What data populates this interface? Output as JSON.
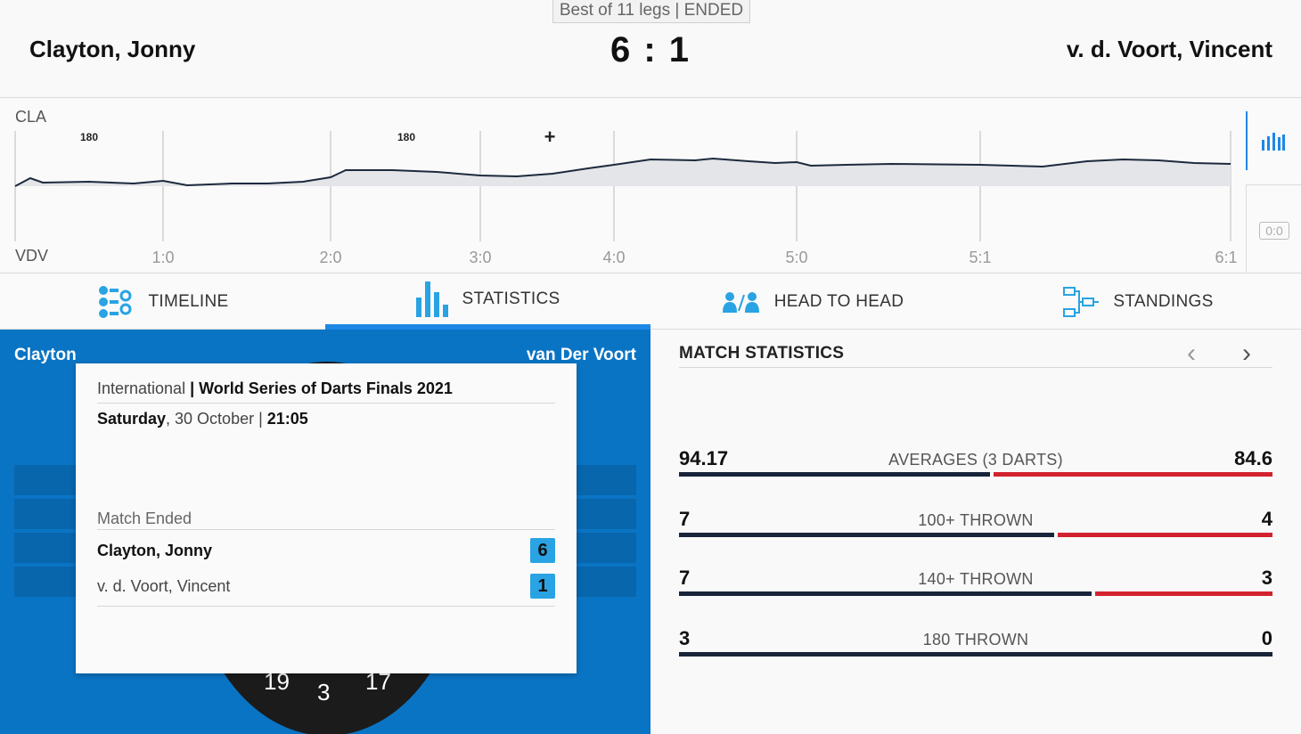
{
  "header": {
    "format": "Best of 11 legs | ENDED",
    "player_left": "Clayton, Jonny",
    "player_right": "v. d. Voort, Vincent",
    "score": "6 : 1"
  },
  "timeline": {
    "abbr_top": "CLA",
    "abbr_bottom": "VDV",
    "legs": [
      "1:0",
      "2:0",
      "3:0",
      "4:0",
      "5:0",
      "5:1",
      "6:1"
    ],
    "markers": [
      {
        "text": "180",
        "leg": 0
      },
      {
        "text": "180",
        "leg": 2
      },
      {
        "text": "+",
        "leg": 3
      }
    ],
    "score_box": "0:0",
    "chart_icon": "bar-chart-icon"
  },
  "tabs": [
    {
      "label": "TIMELINE",
      "icon": "timeline-icon"
    },
    {
      "label": "STATISTICS",
      "icon": "statistics-icon",
      "active": true
    },
    {
      "label": "HEAD TO HEAD",
      "icon": "head-to-head-icon"
    },
    {
      "label": "STANDINGS",
      "icon": "standings-icon"
    }
  ],
  "left_panel": {
    "left_name": "Clayton",
    "right_name": "van Der Voort",
    "board_numbers": [
      "19",
      "3",
      "17"
    ]
  },
  "card": {
    "category": "International",
    "tournament": "World Series of Darts Finals 2021",
    "day": "Saturday",
    "date": ", 30 October | ",
    "time": "21:05",
    "status": "Match Ended",
    "rows": [
      {
        "name": "Clayton, Jonny",
        "legs": "6"
      },
      {
        "name": "v. d. Voort, Vincent",
        "legs": "1"
      }
    ]
  },
  "match_statistics": {
    "title": "MATCH STATISTICS",
    "stats": [
      {
        "label": "AVERAGES (3 DARTS)",
        "left": "94.17",
        "right": "84.6",
        "left_value": 94.17,
        "right_value": 84.6
      },
      {
        "label": "100+ THROWN",
        "left": "7",
        "right": "4",
        "left_value": 7,
        "right_value": 4
      },
      {
        "label": "140+ THROWN",
        "left": "7",
        "right": "3",
        "left_value": 7,
        "right_value": 3
      },
      {
        "label": "180 THROWN",
        "left": "3",
        "right": "0",
        "left_value": 3,
        "right_value": 0
      }
    ]
  },
  "colors": {
    "accent": "#1e88e5",
    "panel_blue": "#0a74c4",
    "bar_left": "#18243a",
    "bar_right": "#d3222f",
    "legs_badge": "#29a3e3"
  }
}
